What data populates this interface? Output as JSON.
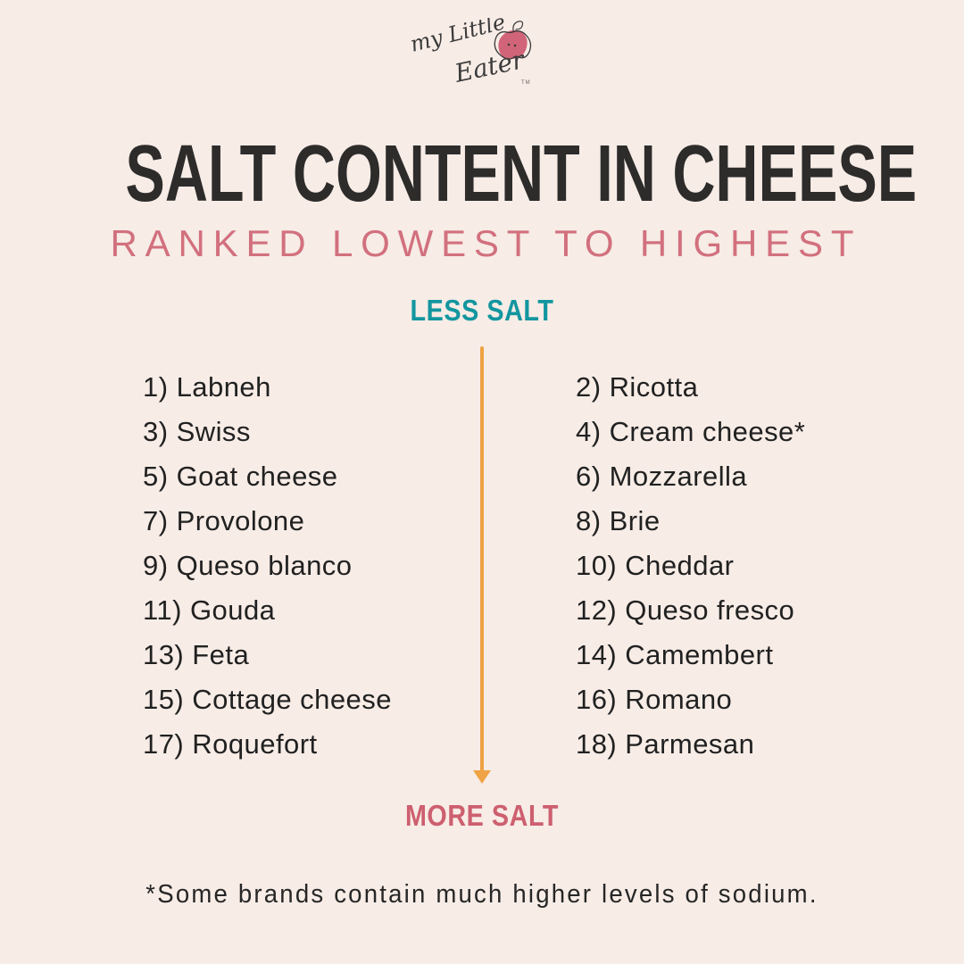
{
  "brand": {
    "name_line1": "my Little",
    "name_line2": "Eater",
    "trademark": "TM"
  },
  "header": {
    "title": "SALT CONTENT IN CHEESE",
    "subtitle": "RANKED LOWEST TO HIGHEST"
  },
  "scale": {
    "less_label": "LESS SALT",
    "more_label": "MORE SALT"
  },
  "cheeses": {
    "left": [
      "1) Labneh",
      "3) Swiss",
      "5) Goat cheese",
      "7) Provolone",
      "9) Queso blanco",
      "11) Gouda",
      "13) Feta",
      "15) Cottage cheese",
      "17) Roquefort"
    ],
    "right": [
      "2) Ricotta",
      "4) Cream cheese*",
      "6) Mozzarella",
      "8) Brie",
      "10) Cheddar",
      "12) Queso fresco",
      "14) Camembert",
      "16) Romano",
      "18) Parmesan"
    ]
  },
  "footnote": "*Some brands contain much higher levels of sodium.",
  "colors": {
    "background": "#f7ece6",
    "title": "#2d2c2b",
    "subtitle_pink": "#d2707e",
    "more_salt_pink": "#cd5f6f",
    "less_salt_teal": "#12969f",
    "arrow_orange": "#efa344",
    "list_text": "#212121",
    "berry_pink": "#cf5d72",
    "logo_ink": "#3b3b3b"
  }
}
